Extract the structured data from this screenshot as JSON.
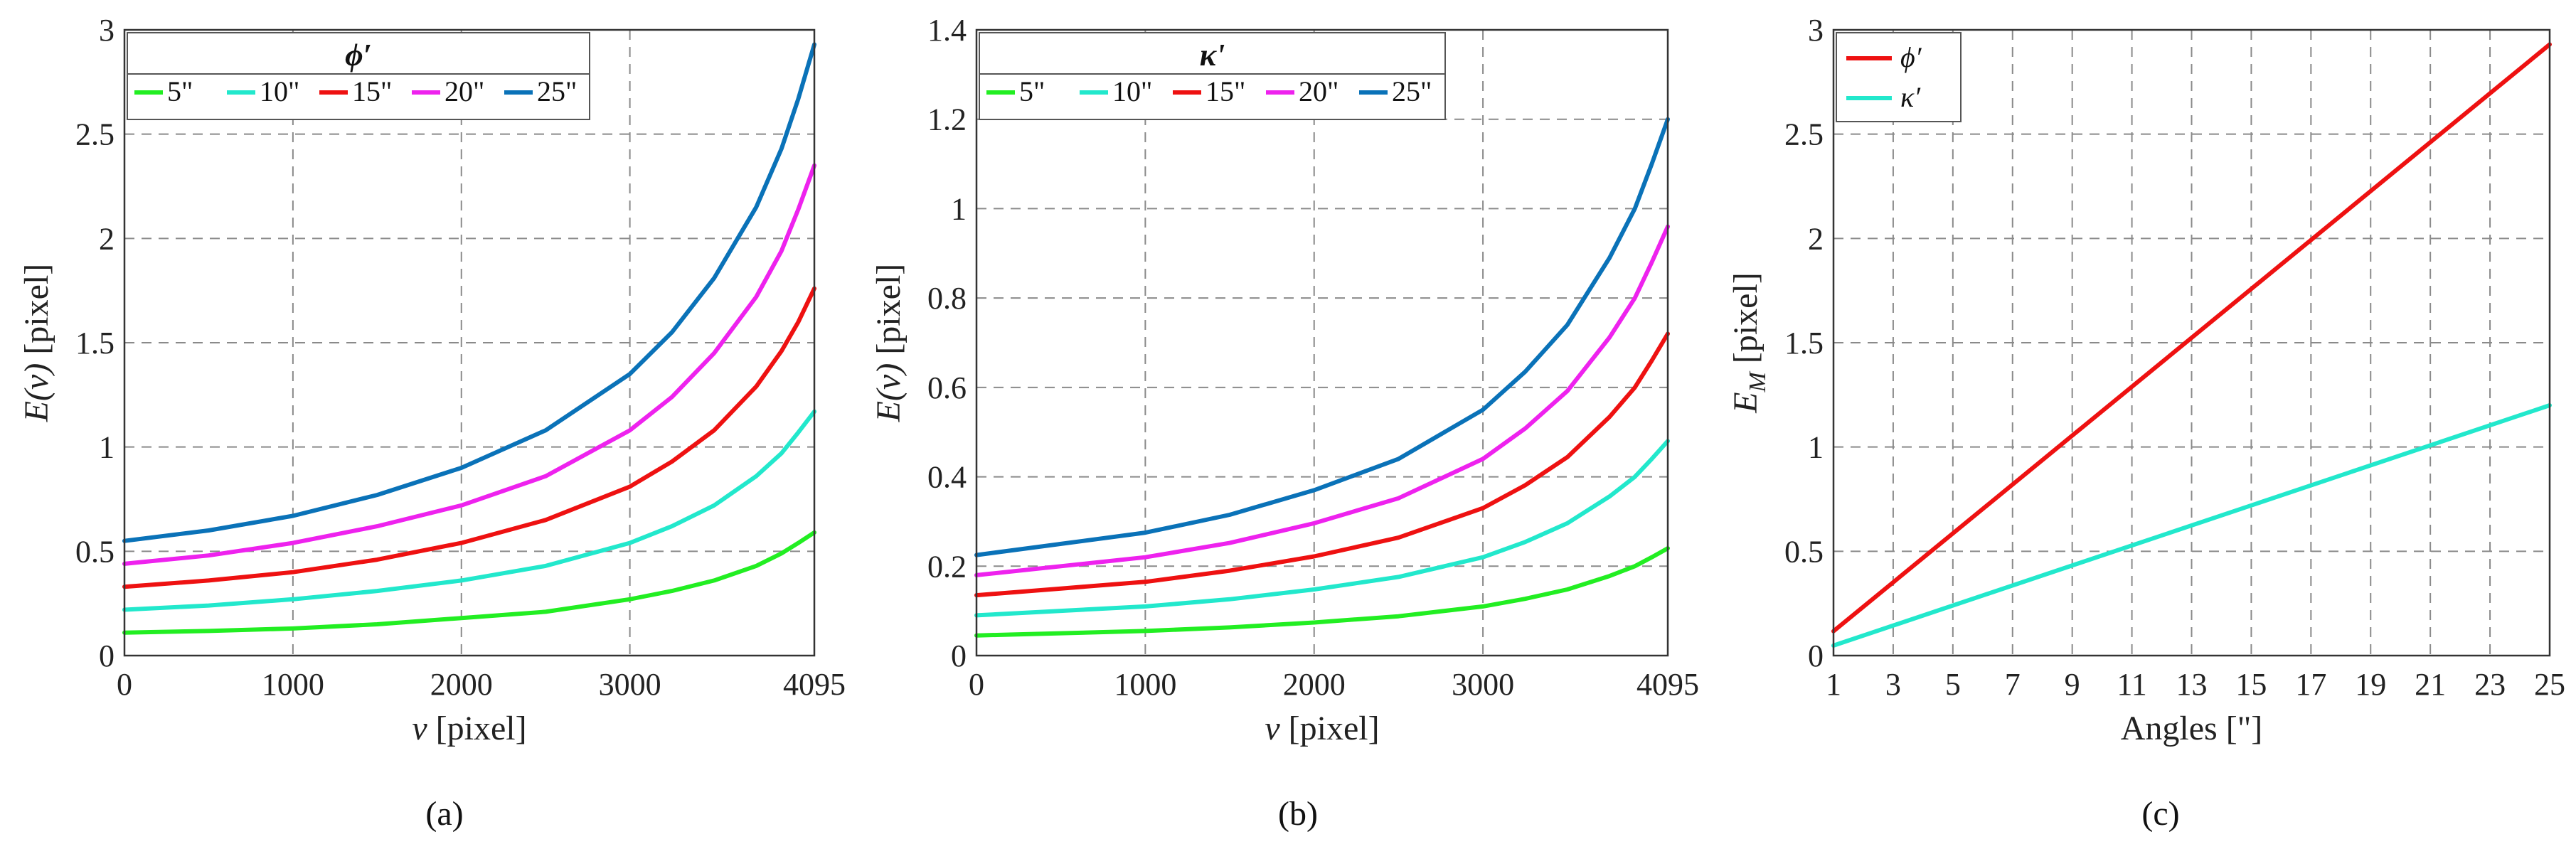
{
  "chart_data": [
    {
      "panel": "(a)",
      "type": "line",
      "xlabel": "v [pixel]",
      "ylabel": "E(v) [pixel]",
      "xlim": [
        0,
        4095
      ],
      "ylim": [
        0,
        3
      ],
      "xticks": [
        "0",
        "1000",
        "2000",
        "3000",
        "4095"
      ],
      "yticks": [
        "0",
        "0.5",
        "1",
        "1.5",
        "2",
        "2.5",
        "3"
      ],
      "grid": true,
      "legend": {
        "title": "ϕ′",
        "placement": "top-left"
      },
      "x": [
        0,
        500,
        1000,
        1500,
        2000,
        2500,
        3000,
        3250,
        3500,
        3750,
        3900,
        4000,
        4095
      ],
      "series": [
        {
          "name": "5\"",
          "color": "#22ee22",
          "values": [
            0.11,
            0.118,
            0.13,
            0.15,
            0.18,
            0.21,
            0.27,
            0.31,
            0.36,
            0.43,
            0.49,
            0.54,
            0.59
          ]
        },
        {
          "name": "10\"",
          "color": "#22e8cc",
          "values": [
            0.22,
            0.24,
            0.27,
            0.31,
            0.36,
            0.43,
            0.54,
            0.62,
            0.72,
            0.86,
            0.97,
            1.07,
            1.17
          ]
        },
        {
          "name": "15\"",
          "color": "#ee1111",
          "values": [
            0.33,
            0.36,
            0.4,
            0.46,
            0.54,
            0.65,
            0.81,
            0.93,
            1.08,
            1.29,
            1.46,
            1.6,
            1.76
          ]
        },
        {
          "name": "20\"",
          "color": "#ee22ee",
          "values": [
            0.44,
            0.48,
            0.54,
            0.62,
            0.72,
            0.86,
            1.08,
            1.24,
            1.45,
            1.72,
            1.94,
            2.14,
            2.35
          ]
        },
        {
          "name": "25\"",
          "color": "#0a72b8",
          "values": [
            0.55,
            0.6,
            0.67,
            0.77,
            0.9,
            1.08,
            1.35,
            1.55,
            1.81,
            2.15,
            2.43,
            2.67,
            2.93
          ]
        }
      ]
    },
    {
      "panel": "(b)",
      "type": "line",
      "xlabel": "v [pixel]",
      "ylabel": "E(v) [pixel]",
      "xlim": [
        0,
        4095
      ],
      "ylim": [
        0,
        1.4
      ],
      "xticks": [
        "0",
        "1000",
        "2000",
        "3000",
        "4095"
      ],
      "yticks": [
        "0",
        "0.2",
        "0.4",
        "0.6",
        "0.8",
        "1",
        "1.2",
        "1.4"
      ],
      "grid": true,
      "legend": {
        "title": "κ'",
        "placement": "top-left"
      },
      "x": [
        0,
        500,
        1000,
        1500,
        2000,
        2500,
        3000,
        3250,
        3500,
        3750,
        3900,
        4000,
        4095
      ],
      "series": [
        {
          "name": "5\"",
          "color": "#22ee22",
          "values": [
            0.045,
            0.05,
            0.055,
            0.063,
            0.074,
            0.088,
            0.11,
            0.127,
            0.148,
            0.178,
            0.2,
            0.22,
            0.24
          ]
        },
        {
          "name": "10\"",
          "color": "#22e8cc",
          "values": [
            0.09,
            0.1,
            0.11,
            0.126,
            0.148,
            0.176,
            0.22,
            0.254,
            0.296,
            0.356,
            0.4,
            0.44,
            0.48
          ]
        },
        {
          "name": "15\"",
          "color": "#ee1111",
          "values": [
            0.135,
            0.15,
            0.165,
            0.19,
            0.222,
            0.264,
            0.33,
            0.381,
            0.444,
            0.534,
            0.6,
            0.66,
            0.72
          ]
        },
        {
          "name": "20\"",
          "color": "#ee22ee",
          "values": [
            0.18,
            0.2,
            0.22,
            0.252,
            0.296,
            0.352,
            0.44,
            0.508,
            0.592,
            0.712,
            0.8,
            0.88,
            0.96
          ]
        },
        {
          "name": "25\"",
          "color": "#0a72b8",
          "values": [
            0.225,
            0.25,
            0.275,
            0.315,
            0.37,
            0.44,
            0.55,
            0.635,
            0.74,
            0.89,
            1.0,
            1.1,
            1.2
          ]
        }
      ]
    },
    {
      "panel": "(c)",
      "type": "line",
      "xlabel": "Angles [\"]",
      "ylabel": "E_M [pixel]",
      "ylabel_main": "E",
      "ylabel_sub": "M",
      "ylabel_rest": " [pixel]",
      "xlim": [
        1,
        25
      ],
      "ylim": [
        0,
        3
      ],
      "xticks": [
        "1",
        "3",
        "5",
        "7",
        "9",
        "11",
        "13",
        "15",
        "17",
        "19",
        "21",
        "23",
        "25"
      ],
      "yticks": [
        "0",
        "0.5",
        "1",
        "1.5",
        "2",
        "2.5",
        "3"
      ],
      "grid": true,
      "legend": {
        "title": "",
        "placement": "top-left"
      },
      "x": [
        1,
        25
      ],
      "series": [
        {
          "name": "ϕ′",
          "color": "#ee1111",
          "values": [
            0.117,
            2.93
          ]
        },
        {
          "name": "κ′",
          "color": "#22e8cc",
          "values": [
            0.048,
            1.2
          ]
        }
      ]
    }
  ],
  "panel_labels": [
    "(a)",
    "(b)",
    "(c)"
  ]
}
